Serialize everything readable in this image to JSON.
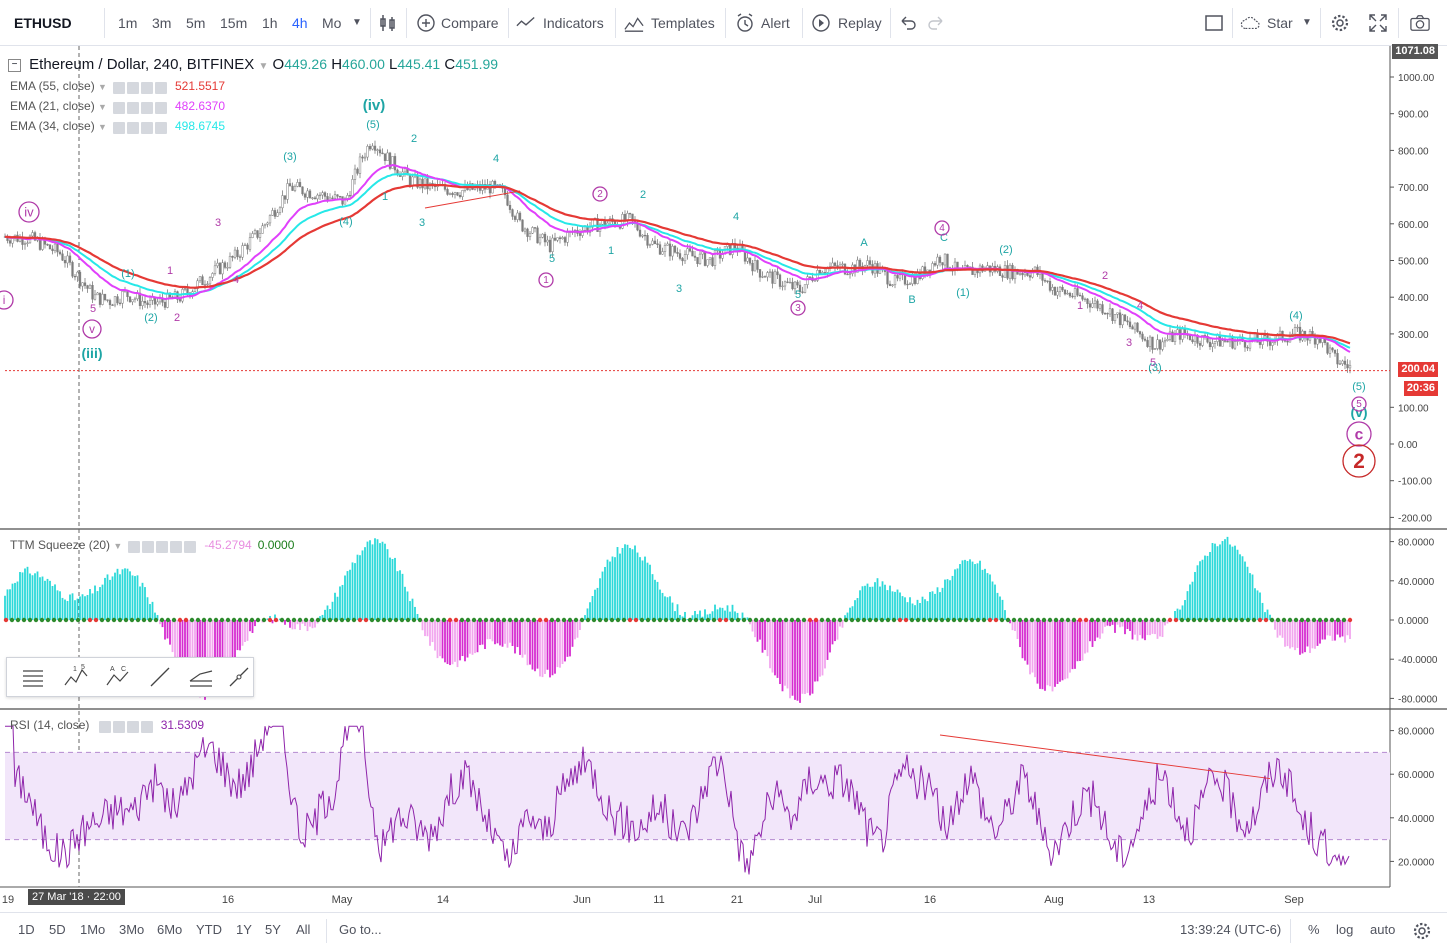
{
  "toolbar": {
    "symbol": "ETHUSD",
    "intervals": [
      "1m",
      "3m",
      "5m",
      "15m",
      "1h",
      "4h",
      "Mo"
    ],
    "active_interval": "4h",
    "compare": "Compare",
    "indicators": "Indicators",
    "templates": "Templates",
    "alert": "Alert",
    "replay": "Replay",
    "layout_name": "Star"
  },
  "main": {
    "title": "Ethereum / Dollar, 240, BITFINEX",
    "open_label": "O",
    "open": "449.26",
    "high_label": "H",
    "high": "460.00",
    "low_label": "L",
    "low": "445.41",
    "close_label": "C",
    "close": "451.99",
    "ema": [
      {
        "label": "EMA (55, close)",
        "value": "521.5517",
        "color": "#e53935"
      },
      {
        "label": "EMA (21, close)",
        "value": "482.6370",
        "color": "#e040fb"
      },
      {
        "label": "EMA (34, close)",
        "value": "498.6745",
        "color": "#26e8e8"
      }
    ],
    "price_axis": [
      "1000.00",
      "900.00",
      "800.00",
      "700.00",
      "600.00",
      "500.00",
      "400.00",
      "300.00",
      "200.00",
      "100.00",
      "0.00",
      "-100.00",
      "-200.00"
    ],
    "top_price": "1071.08",
    "current_price": "200.04",
    "countdown": "20:36",
    "wave_labels": [
      {
        "t": "(iv)",
        "c": "#1ea5a5",
        "s": 15,
        "b": true
      },
      {
        "t": "(iii)",
        "c": "#1ea5a5",
        "s": 14,
        "b": true
      },
      {
        "t": "(5)",
        "c": "#1ea5a5",
        "s": 11,
        "b": false
      },
      {
        "t": "(3)",
        "c": "#1ea5a5",
        "s": 11,
        "b": false
      },
      {
        "t": "(4)",
        "c": "#1ea5a5",
        "s": 11,
        "b": false
      },
      {
        "t": "(1)",
        "c": "#1ea5a5",
        "s": 11,
        "b": false
      },
      {
        "t": "(2)",
        "c": "#1ea5a5",
        "s": 11,
        "b": false
      },
      {
        "t": "5",
        "c": "#b03aa8",
        "s": 11,
        "b": false
      },
      {
        "t": "3",
        "c": "#b03aa8",
        "s": 11,
        "b": false
      },
      {
        "t": "4",
        "c": "#b03aa8",
        "s": 11,
        "b": false
      },
      {
        "t": "1",
        "c": "#b03aa8",
        "s": 11,
        "b": false
      },
      {
        "t": "2",
        "c": "#b03aa8",
        "s": 11,
        "b": false
      },
      {
        "t": "2",
        "c": "#1ea5a5",
        "s": 11,
        "b": false
      },
      {
        "t": "4",
        "c": "#1ea5a5",
        "s": 11,
        "b": false
      },
      {
        "t": "1",
        "c": "#1ea5a5",
        "s": 11,
        "b": false
      },
      {
        "t": "3",
        "c": "#1ea5a5",
        "s": 11,
        "b": false
      },
      {
        "t": "2",
        "c": "#1ea5a5",
        "s": 11,
        "b": false
      },
      {
        "t": "5",
        "c": "#1ea5a5",
        "s": 11,
        "b": false
      },
      {
        "t": "1",
        "c": "#1ea5a5",
        "s": 11,
        "b": false
      },
      {
        "t": "3",
        "c": "#1ea5a5",
        "s": 11,
        "b": false
      },
      {
        "t": "4",
        "c": "#1ea5a5",
        "s": 11,
        "b": false
      },
      {
        "t": "5",
        "c": "#1ea5a5",
        "s": 11,
        "b": false
      },
      {
        "t": "A",
        "c": "#1ea5a5",
        "s": 11,
        "b": false
      },
      {
        "t": "B",
        "c": "#1ea5a5",
        "s": 11,
        "b": false
      },
      {
        "t": "C",
        "c": "#1ea5a5",
        "s": 11,
        "b": false
      },
      {
        "t": "(1)",
        "c": "#1ea5a5",
        "s": 11,
        "b": false
      },
      {
        "t": "(2)",
        "c": "#1ea5a5",
        "s": 11,
        "b": false
      },
      {
        "t": "2",
        "c": "#b03aa8",
        "s": 11,
        "b": false
      },
      {
        "t": "1",
        "c": "#b03aa8",
        "s": 11,
        "b": false
      },
      {
        "t": "4",
        "c": "#b03aa8",
        "s": 11,
        "b": false
      },
      {
        "t": "3",
        "c": "#b03aa8",
        "s": 11,
        "b": false
      },
      {
        "t": "5",
        "c": "#b03aa8",
        "s": 11,
        "b": false
      },
      {
        "t": "(3)",
        "c": "#1ea5a5",
        "s": 11,
        "b": false
      },
      {
        "t": "(4)",
        "c": "#1ea5a5",
        "s": 11,
        "b": false
      },
      {
        "t": "(5)",
        "c": "#1ea5a5",
        "s": 11,
        "b": false
      },
      {
        "t": "(v)",
        "c": "#1ea5a5",
        "s": 14,
        "b": true
      }
    ],
    "circle_labels": [
      {
        "t": "iv",
        "c": "#b03aa8"
      },
      {
        "t": "v",
        "c": "#b03aa8"
      },
      {
        "t": "i",
        "c": "#b03aa8"
      },
      {
        "t": "1",
        "c": "#b03aa8"
      },
      {
        "t": "2",
        "c": "#b03aa8"
      },
      {
        "t": "3",
        "c": "#b03aa8"
      },
      {
        "t": "4",
        "c": "#b03aa8"
      },
      {
        "t": "5",
        "c": "#b03aa8"
      },
      {
        "t": "c",
        "c": "#b03aa8"
      },
      {
        "t": "2",
        "c": "#c62828"
      }
    ]
  },
  "ttm": {
    "label": "TTM Squeeze (20)",
    "value1": "-45.2794",
    "value1_color": "#e88ee0",
    "value2": "0.0000",
    "value2_color": "#1b7d1b",
    "axis": [
      "80.0000",
      "40.0000",
      "0.0000",
      "-40.0000",
      "-80.0000"
    ]
  },
  "rsi": {
    "label": "RSI (14, close)",
    "value": "31.5309",
    "axis": [
      "80.0000",
      "60.0000",
      "40.0000",
      "20.0000"
    ]
  },
  "time_axis": [
    "19",
    "16",
    "May",
    "14",
    "Jun",
    "11",
    "21",
    "Jul",
    "16",
    "Aug",
    "13",
    "Sep"
  ],
  "crosshair_date": "27 Mar '18 · 22:00",
  "bottom": {
    "ranges": [
      "1D",
      "5D",
      "1Mo",
      "3Mo",
      "6Mo",
      "YTD",
      "1Y",
      "5Y",
      "All"
    ],
    "goto": "Go to...",
    "clock": "13:39:24 (UTC-6)",
    "pct": "%",
    "log": "log",
    "auto": "auto"
  },
  "colors": {
    "ema55": "#e53935",
    "ema21": "#e040fb",
    "ema34": "#26e8e8",
    "candle": "#7d7d7d",
    "rsi": "#8e24aa",
    "rsi_band": "#f2e6fa",
    "sq_up": "#2bd9d9",
    "sq_dn": "#d62cd0",
    "sq_dn_light": "#f2a6ee",
    "price_line": "#e53935"
  }
}
